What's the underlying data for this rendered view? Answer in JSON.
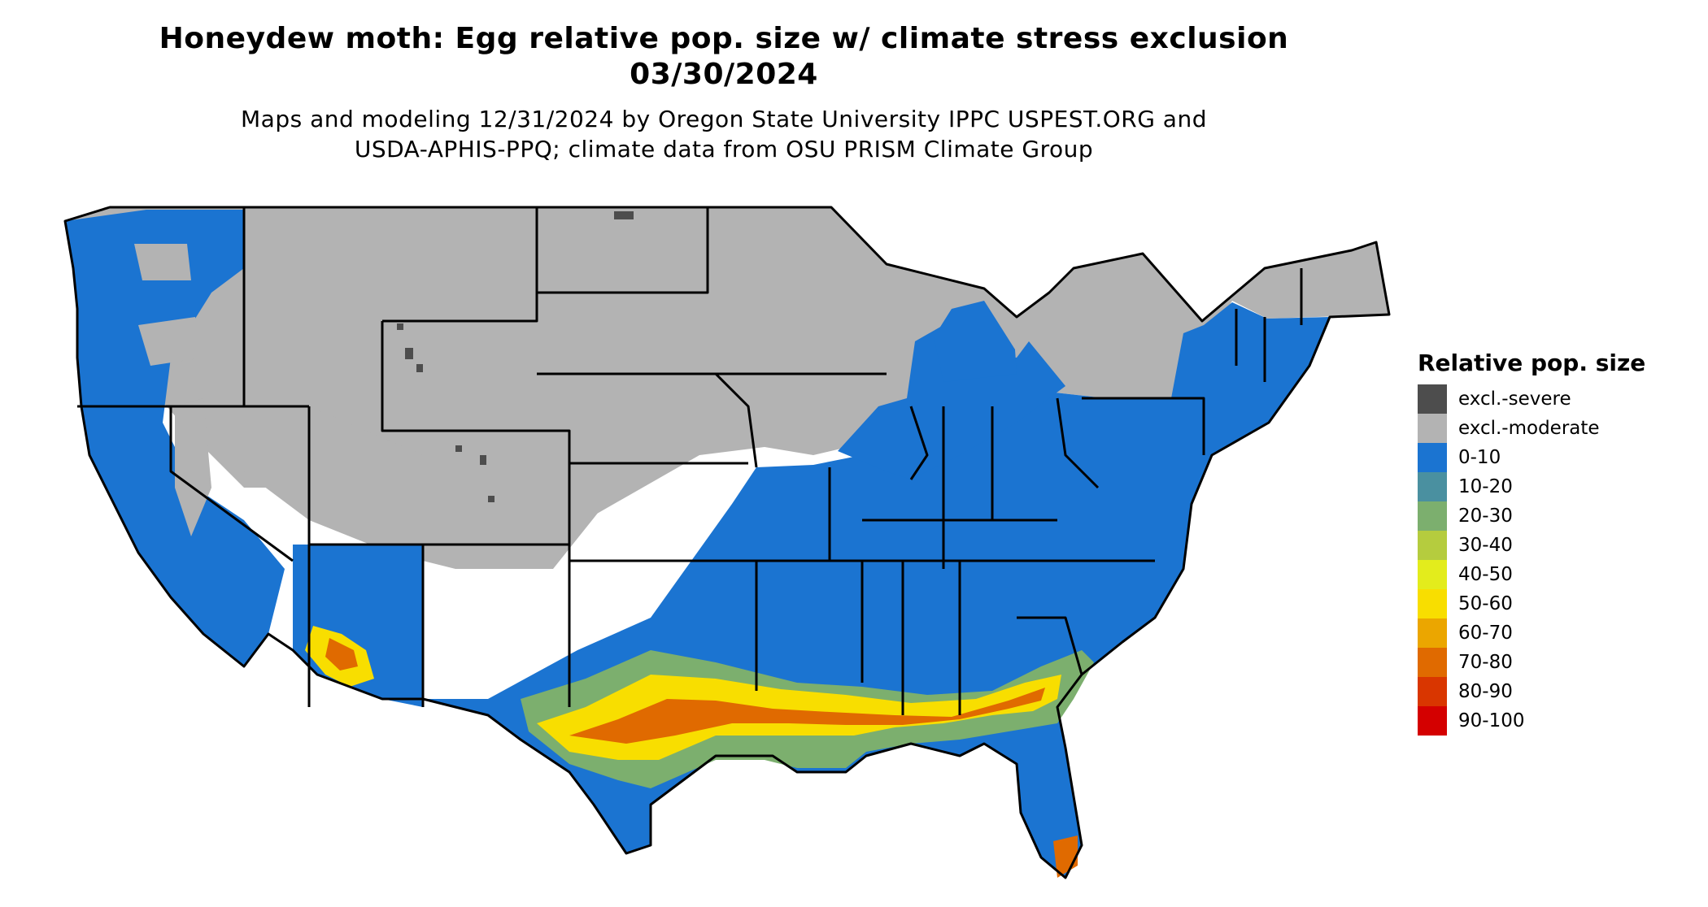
{
  "title": {
    "line1": "Honeydew moth: Egg relative pop. size w/ climate stress exclusion",
    "line2": "03/30/2024"
  },
  "subtitle": {
    "line1": "Maps and modeling 12/31/2024 by Oregon State University IPPC USPEST.ORG and",
    "line2": "USDA-APHIS-PPQ; climate data from OSU PRISM Climate Group"
  },
  "legend": {
    "title": "Relative pop. size",
    "items": [
      {
        "label": "excl.-severe",
        "color": "#4d4d4d"
      },
      {
        "label": "excl.-moderate",
        "color": "#b3b3b3"
      },
      {
        "label": "0-10",
        "color": "#1b74d1"
      },
      {
        "label": "10-20",
        "color": "#4a90a0"
      },
      {
        "label": "20-30",
        "color": "#7caf6e"
      },
      {
        "label": "30-40",
        "color": "#b5cc3e"
      },
      {
        "label": "40-50",
        "color": "#e3ec1c"
      },
      {
        "label": "50-60",
        "color": "#f8de00"
      },
      {
        "label": "60-70",
        "color": "#eba600"
      },
      {
        "label": "70-80",
        "color": "#e06a00"
      },
      {
        "label": "80-90",
        "color": "#d93600"
      },
      {
        "label": "90-100",
        "color": "#d40000"
      }
    ]
  }
}
